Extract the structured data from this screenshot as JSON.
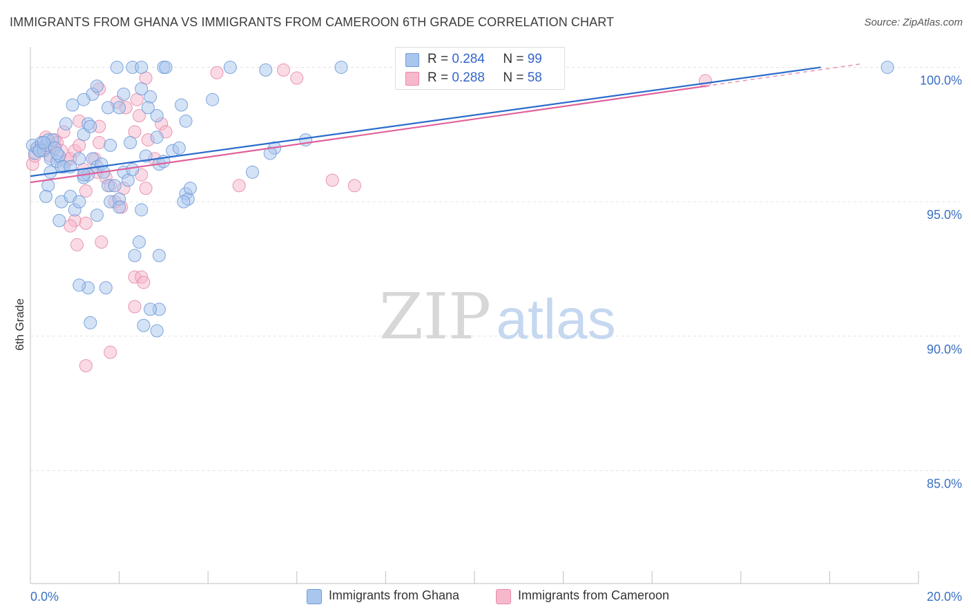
{
  "title": "IMMIGRANTS FROM GHANA VS IMMIGRANTS FROM CAMEROON 6TH GRADE CORRELATION CHART",
  "source": "Source: ZipAtlas.com",
  "watermark": {
    "zip": "ZIP",
    "atlas": "atlas"
  },
  "legend": {
    "ghana": {
      "r_label": "R =",
      "r_value": "0.284",
      "n_label": "N =",
      "n_value": "99"
    },
    "cameroon": {
      "r_label": "R =",
      "r_value": "0.288",
      "n_label": "N =",
      "n_value": "58"
    }
  },
  "bottom_legend": {
    "ghana": "Immigrants from Ghana",
    "cameroon": "Immigrants from Cameroon"
  },
  "colors": {
    "ghana_fill": "#a9c6ee",
    "ghana_stroke": "#6f9bd8",
    "ghana_line": "#2a6ccc",
    "cameroon_fill": "#f6b8cb",
    "cameroon_stroke": "#e88aa8",
    "cameroon_line": "#e0609a",
    "axis_text": "#3a6fc4",
    "grid": "#e2e2e2"
  },
  "chart_data": {
    "type": "scatter",
    "title": "IMMIGRANTS FROM GHANA VS IMMIGRANTS FROM CAMEROON 6TH GRADE CORRELATION CHART",
    "xlabel": "",
    "ylabel": "6th Grade",
    "xlim": [
      0,
      20
    ],
    "ylim": [
      80.8,
      100.5
    ],
    "x_tick_labels": [
      {
        "value": 0,
        "label": "0.0%"
      },
      {
        "value": 20,
        "label": "20.0%"
      }
    ],
    "y_tick_labels": [
      {
        "value": 100,
        "label": "100.0%"
      },
      {
        "value": 95,
        "label": "95.0%"
      },
      {
        "value": 90,
        "label": "90.0%"
      },
      {
        "value": 85,
        "label": "85.0%"
      }
    ],
    "series": [
      {
        "name": "Immigrants from Ghana",
        "r": 0.284,
        "n": 99,
        "trend": [
          [
            0,
            95.95
          ],
          [
            17.8,
            100.0
          ]
        ],
        "points": [
          [
            0.05,
            97.1
          ],
          [
            0.1,
            96.8
          ],
          [
            0.15,
            97.0
          ],
          [
            0.2,
            96.9
          ],
          [
            0.25,
            97.2
          ],
          [
            0.3,
            96.9
          ],
          [
            0.35,
            97.1
          ],
          [
            0.4,
            97.3
          ],
          [
            0.45,
            96.6
          ],
          [
            0.5,
            97.3
          ],
          [
            0.55,
            97.0
          ],
          [
            0.6,
            96.5
          ],
          [
            0.65,
            96.7
          ],
          [
            0.7,
            96.3
          ],
          [
            0.75,
            96.3
          ],
          [
            0.2,
            96.9
          ],
          [
            0.3,
            97.2
          ],
          [
            0.4,
            95.6
          ],
          [
            0.45,
            96.1
          ],
          [
            0.6,
            96.8
          ],
          [
            0.35,
            95.2
          ],
          [
            0.7,
            95.0
          ],
          [
            0.65,
            94.3
          ],
          [
            1.0,
            94.7
          ],
          [
            0.9,
            95.2
          ],
          [
            1.1,
            95.0
          ],
          [
            1.2,
            95.9
          ],
          [
            1.3,
            96.0
          ],
          [
            1.4,
            96.6
          ],
          [
            1.5,
            96.3
          ],
          [
            1.6,
            96.4
          ],
          [
            1.65,
            96.1
          ],
          [
            1.75,
            95.6
          ],
          [
            1.8,
            95.0
          ],
          [
            1.9,
            95.6
          ],
          [
            2.0,
            95.1
          ],
          [
            2.1,
            96.1
          ],
          [
            2.2,
            95.8
          ],
          [
            2.0,
            94.8
          ],
          [
            1.5,
            94.5
          ],
          [
            1.2,
            97.5
          ],
          [
            1.3,
            97.9
          ],
          [
            1.1,
            96.6
          ],
          [
            0.9,
            96.3
          ],
          [
            0.8,
            97.9
          ],
          [
            1.2,
            96.0
          ],
          [
            1.8,
            97.1
          ],
          [
            1.4,
            99.0
          ],
          [
            1.5,
            99.3
          ],
          [
            1.75,
            98.5
          ],
          [
            1.35,
            97.8
          ],
          [
            1.2,
            98.8
          ],
          [
            0.95,
            98.6
          ],
          [
            2.1,
            99.0
          ],
          [
            2.0,
            98.5
          ],
          [
            1.95,
            100.0
          ],
          [
            2.3,
            100.0
          ],
          [
            2.5,
            100.0
          ],
          [
            2.7,
            98.9
          ],
          [
            2.85,
            98.2
          ],
          [
            2.65,
            98.5
          ],
          [
            3.0,
            100.0
          ],
          [
            3.05,
            100.0
          ],
          [
            2.5,
            99.2
          ],
          [
            2.25,
            97.2
          ],
          [
            2.3,
            96.2
          ],
          [
            2.6,
            96.7
          ],
          [
            2.85,
            97.4
          ],
          [
            2.9,
            96.4
          ],
          [
            3.2,
            96.9
          ],
          [
            3.5,
            95.3
          ],
          [
            3.55,
            95.1
          ],
          [
            3.6,
            95.5
          ],
          [
            3.45,
            95.0
          ],
          [
            3.35,
            97.0
          ],
          [
            3.4,
            98.6
          ],
          [
            4.5,
            100.0
          ],
          [
            4.1,
            98.8
          ],
          [
            3.5,
            98.0
          ],
          [
            3.0,
            96.5
          ],
          [
            2.5,
            94.7
          ],
          [
            2.45,
            93.5
          ],
          [
            2.9,
            93.0
          ],
          [
            2.9,
            91.0
          ],
          [
            2.7,
            91.0
          ],
          [
            1.3,
            91.8
          ],
          [
            1.7,
            91.8
          ],
          [
            1.1,
            91.9
          ],
          [
            1.35,
            90.5
          ],
          [
            2.55,
            90.4
          ],
          [
            2.85,
            90.2
          ],
          [
            2.35,
            93.0
          ],
          [
            5.5,
            97.0
          ],
          [
            5.4,
            96.8
          ],
          [
            6.2,
            97.3
          ],
          [
            7.0,
            100.0
          ],
          [
            5.3,
            99.9
          ],
          [
            5.0,
            96.1
          ],
          [
            19.3,
            100.0
          ]
        ]
      },
      {
        "name": "Immigrants from Cameroon",
        "r": 0.288,
        "n": 58,
        "trend": [
          [
            0,
            95.72
          ],
          [
            15.2,
            99.3
          ]
        ],
        "points": [
          [
            0.05,
            96.4
          ],
          [
            0.1,
            96.7
          ],
          [
            0.2,
            97.0
          ],
          [
            0.3,
            96.9
          ],
          [
            0.35,
            97.4
          ],
          [
            0.45,
            96.7
          ],
          [
            0.55,
            97.3
          ],
          [
            0.6,
            97.2
          ],
          [
            0.7,
            96.9
          ],
          [
            0.8,
            96.5
          ],
          [
            0.45,
            97.1
          ],
          [
            0.75,
            97.6
          ],
          [
            0.9,
            96.6
          ],
          [
            1.0,
            96.9
          ],
          [
            1.1,
            97.1
          ],
          [
            1.2,
            96.2
          ],
          [
            1.45,
            96.6
          ],
          [
            1.5,
            96.1
          ],
          [
            1.55,
            97.2
          ],
          [
            1.7,
            95.9
          ],
          [
            1.8,
            95.6
          ],
          [
            1.9,
            95.0
          ],
          [
            2.05,
            94.8
          ],
          [
            2.1,
            95.5
          ],
          [
            2.5,
            96.0
          ],
          [
            2.6,
            95.5
          ],
          [
            2.65,
            97.3
          ],
          [
            2.8,
            96.6
          ],
          [
            1.25,
            95.4
          ],
          [
            1.0,
            94.3
          ],
          [
            1.25,
            94.2
          ],
          [
            0.9,
            94.1
          ],
          [
            1.05,
            93.4
          ],
          [
            1.6,
            93.5
          ],
          [
            2.35,
            92.2
          ],
          [
            2.5,
            92.2
          ],
          [
            2.35,
            91.1
          ],
          [
            2.55,
            92.0
          ],
          [
            1.8,
            89.4
          ],
          [
            1.25,
            88.9
          ],
          [
            2.4,
            98.8
          ],
          [
            2.6,
            99.6
          ],
          [
            2.95,
            97.9
          ],
          [
            3.05,
            97.6
          ],
          [
            1.55,
            97.8
          ],
          [
            1.1,
            98.0
          ],
          [
            1.55,
            99.2
          ],
          [
            1.95,
            98.7
          ],
          [
            2.15,
            98.5
          ],
          [
            2.45,
            98.2
          ],
          [
            2.35,
            97.6
          ],
          [
            4.2,
            99.8
          ],
          [
            5.7,
            99.9
          ],
          [
            6.0,
            99.6
          ],
          [
            4.7,
            95.6
          ],
          [
            6.8,
            95.8
          ],
          [
            7.3,
            95.6
          ],
          [
            15.2,
            99.5
          ]
        ]
      }
    ]
  }
}
